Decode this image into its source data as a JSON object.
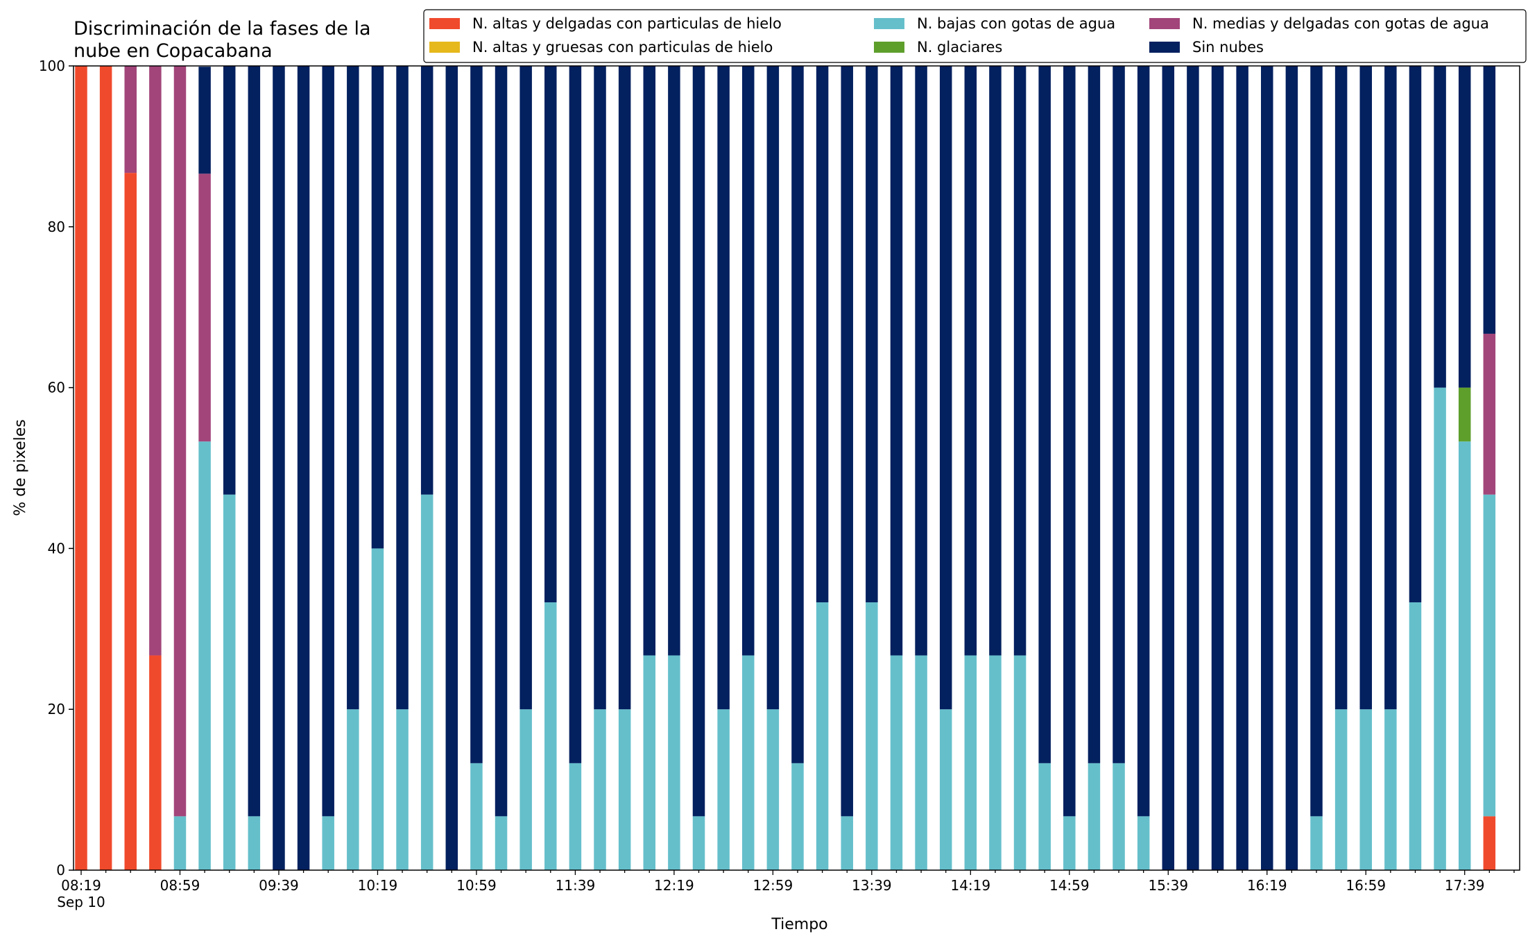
{
  "chart_data": {
    "type": "bar",
    "stacked": true,
    "title": "Discriminación de la fases de la\nnube en Copacabana",
    "xlabel": "Tiempo",
    "ylabel": "% de pixeles",
    "ylim": [
      0,
      100
    ],
    "yticks": [
      0,
      20,
      40,
      60,
      80,
      100
    ],
    "xtick_labels": [
      "08:19\nSep 10",
      "08:59",
      "09:39",
      "10:19",
      "10:59",
      "11:39",
      "12:19",
      "12:59",
      "13:39",
      "14:19",
      "14:59",
      "15:39",
      "16:19",
      "16:59",
      "17:39"
    ],
    "legend_position": "top",
    "legend_columns": 3,
    "categories": [
      "08:19",
      "08:29",
      "08:39",
      "08:49",
      "08:59",
      "09:09",
      "09:19",
      "09:29",
      "09:39",
      "09:49",
      "09:59",
      "10:09",
      "10:19",
      "10:29",
      "10:39",
      "10:49",
      "10:59",
      "11:09",
      "11:19",
      "11:29",
      "11:39",
      "11:49",
      "11:59",
      "12:09",
      "12:19",
      "12:29",
      "12:39",
      "12:49",
      "12:59",
      "13:09",
      "13:19",
      "13:29",
      "13:39",
      "13:49",
      "13:59",
      "14:09",
      "14:19",
      "14:29",
      "14:39",
      "14:49",
      "14:59",
      "15:09",
      "15:19",
      "15:29",
      "15:39",
      "15:49",
      "15:59",
      "16:09",
      "16:19",
      "16:29",
      "16:39",
      "16:49",
      "16:59",
      "17:09",
      "17:19",
      "17:29",
      "17:39",
      "17:49"
    ],
    "series": [
      {
        "name": "N. altas y delgadas con particulas de hielo",
        "color": "#f04a2c",
        "values": [
          100,
          100,
          86.7,
          26.7,
          0,
          0,
          0,
          0,
          0,
          0,
          0,
          0,
          0,
          0,
          0,
          0,
          0,
          0,
          0,
          0,
          0,
          0,
          0,
          0,
          0,
          0,
          0,
          0,
          0,
          0,
          0,
          0,
          0,
          0,
          0,
          0,
          0,
          0,
          0,
          0,
          0,
          0,
          0,
          0,
          0,
          0,
          0,
          0,
          0,
          0,
          0,
          0,
          0,
          0,
          0,
          0,
          0,
          6.7
        ]
      },
      {
        "name": "N. altas y gruesas con particulas de hielo",
        "color": "#e6b81c",
        "values": [
          0,
          0,
          0,
          0,
          0,
          0,
          0,
          0,
          0,
          0,
          0,
          0,
          0,
          0,
          0,
          0,
          0,
          0,
          0,
          0,
          0,
          0,
          0,
          0,
          0,
          0,
          0,
          0,
          0,
          0,
          0,
          0,
          0,
          0,
          0,
          0,
          0,
          0,
          0,
          0,
          0,
          0,
          0,
          0,
          0,
          0,
          0,
          0,
          0,
          0,
          0,
          0,
          0,
          0,
          0,
          0,
          0,
          0
        ]
      },
      {
        "name": "N. bajas con gotas de agua",
        "color": "#65bfcb",
        "values": [
          0,
          0,
          0,
          0,
          6.7,
          53.3,
          46.7,
          6.7,
          0,
          0,
          6.7,
          20,
          40,
          20,
          46.7,
          0,
          13.3,
          6.7,
          20,
          33.3,
          13.3,
          20,
          20,
          26.7,
          26.7,
          6.7,
          20,
          26.7,
          20,
          13.3,
          33.3,
          6.7,
          33.3,
          26.7,
          26.7,
          20,
          26.7,
          26.7,
          26.7,
          13.3,
          6.7,
          13.3,
          13.3,
          6.7,
          0,
          0,
          0,
          0,
          0,
          0,
          6.7,
          20,
          20,
          20,
          33.3,
          60,
          53.3,
          40
        ]
      },
      {
        "name": "N. glaciares",
        "color": "#5e9f2c",
        "values": [
          0,
          0,
          0,
          0,
          0,
          0,
          0,
          0,
          0,
          0,
          0,
          0,
          0,
          0,
          0,
          0,
          0,
          0,
          0,
          0,
          0,
          0,
          0,
          0,
          0,
          0,
          0,
          0,
          0,
          0,
          0,
          0,
          0,
          0,
          0,
          0,
          0,
          0,
          0,
          0,
          0,
          0,
          0,
          0,
          0,
          0,
          0,
          0,
          0,
          0,
          0,
          0,
          0,
          0,
          0,
          0,
          6.7,
          0
        ]
      },
      {
        "name": "N. medias y delgadas con gotas de agua",
        "color": "#a2457a",
        "values": [
          0,
          0,
          13.3,
          73.3,
          93.3,
          33.3,
          0,
          0,
          0,
          0,
          0,
          0,
          0,
          0,
          0,
          0,
          0,
          0,
          0,
          0,
          0,
          0,
          0,
          0,
          0,
          0,
          0,
          0,
          0,
          0,
          0,
          0,
          0,
          0,
          0,
          0,
          0,
          0,
          0,
          0,
          0,
          0,
          0,
          0,
          0,
          0,
          0,
          0,
          0,
          0,
          0,
          0,
          0,
          0,
          0,
          0,
          0,
          20
        ]
      },
      {
        "name": "Sin nubes",
        "color": "#03205f",
        "values": [
          0,
          0,
          0,
          0,
          0,
          13.3,
          53.3,
          93.3,
          100,
          100,
          93.3,
          80,
          60,
          80,
          53.3,
          100,
          86.7,
          93.3,
          80,
          66.7,
          86.7,
          80,
          80,
          73.3,
          73.3,
          93.3,
          80,
          73.3,
          80,
          86.7,
          66.7,
          93.3,
          66.7,
          73.3,
          73.3,
          80,
          73.3,
          73.3,
          73.3,
          86.7,
          93.3,
          86.7,
          86.7,
          93.3,
          100,
          100,
          100,
          100,
          100,
          100,
          93.3,
          80,
          80,
          80,
          66.7,
          40,
          40,
          33.3
        ]
      }
    ]
  }
}
